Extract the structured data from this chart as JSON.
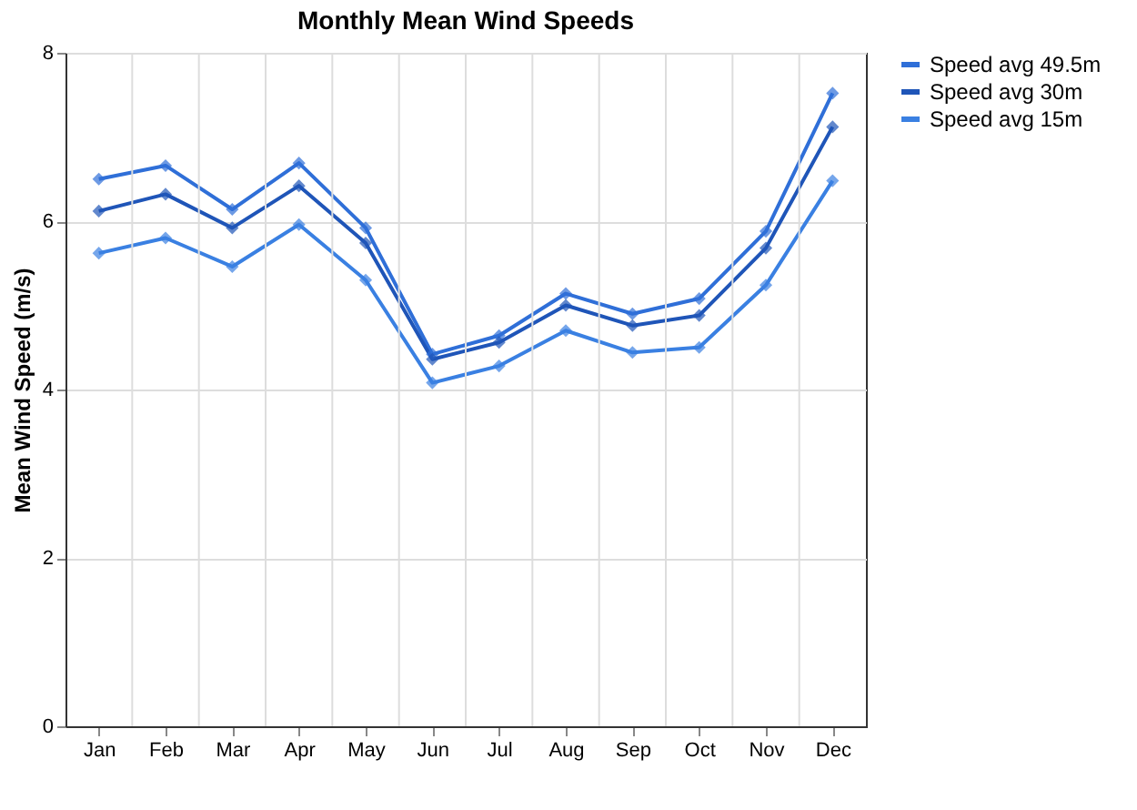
{
  "chart_data": {
    "type": "line",
    "title": "Monthly Mean Wind Speeds",
    "ylabel": "Mean Wind Speed (m/s)",
    "categories": [
      "Jan",
      "Feb",
      "Mar",
      "Apr",
      "May",
      "Jun",
      "Jul",
      "Aug",
      "Sep",
      "Oct",
      "Nov",
      "Dec"
    ],
    "series": [
      {
        "name": "Speed avg 49.5m",
        "color": "#2f6fd8",
        "values": [
          6.5,
          6.66,
          6.14,
          6.69,
          5.92,
          4.42,
          4.64,
          5.14,
          4.9,
          5.08,
          5.88,
          7.52
        ]
      },
      {
        "name": "Speed avg 30m",
        "color": "#1f55b8",
        "values": [
          6.12,
          6.32,
          5.92,
          6.42,
          5.74,
          4.36,
          4.56,
          5.0,
          4.76,
          4.88,
          5.68,
          7.12
        ]
      },
      {
        "name": "Speed avg 15m",
        "color": "#3a80e2",
        "values": [
          5.62,
          5.8,
          5.46,
          5.96,
          5.3,
          4.08,
          4.28,
          4.7,
          4.44,
          4.5,
          5.24,
          6.48
        ]
      }
    ],
    "ylim": [
      0,
      8
    ],
    "yticks": [
      0,
      2,
      4,
      6,
      8
    ],
    "grid": true,
    "legend": "right",
    "marker": "diamond",
    "line_style": "solid"
  }
}
